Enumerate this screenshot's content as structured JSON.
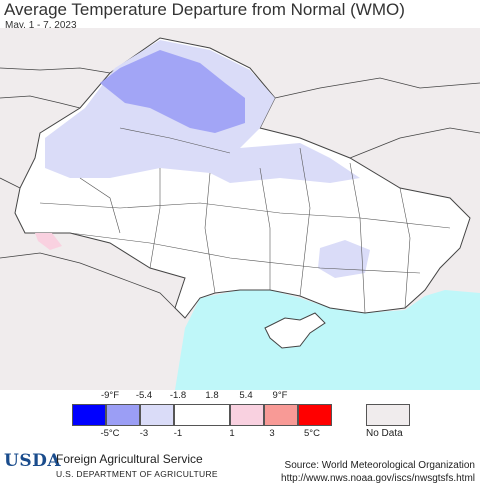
{
  "title": "Average Temperature Departure from Normal (WMO)",
  "date_range": "May. 1 - 7, 2023",
  "legend": {
    "fahrenheit_ticks": [
      "-9°F",
      "-5.4",
      "-1.8",
      "1.8",
      "5.4",
      "9°F"
    ],
    "celsius_ticks": [
      "-5°C",
      "-3",
      "-1",
      "1",
      "3",
      "5°C"
    ],
    "bins": [
      {
        "color": "#0000ff"
      },
      {
        "color": "#9b9ef5"
      },
      {
        "color": "#dadcf8"
      },
      {
        "color": "#ffffff"
      },
      {
        "color": "#f9d1e0"
      },
      {
        "color": "#f89a96"
      },
      {
        "color": "#ff0000"
      }
    ],
    "no_data_label": "No Data",
    "no_data_color": "#f0eced"
  },
  "colors": {
    "sea": "#bff7f9",
    "no_data_land": "#f0eced",
    "border": "#444444"
  },
  "footer": {
    "logo_text": "USDA",
    "agency": "Foreign Agricultural Service",
    "department": "U.S. DEPARTMENT OF AGRICULTURE",
    "source": "Source: World Meteorological Organization",
    "url": "http://www.nws.noaa.gov/iscs/nwsgtsfs.html"
  }
}
